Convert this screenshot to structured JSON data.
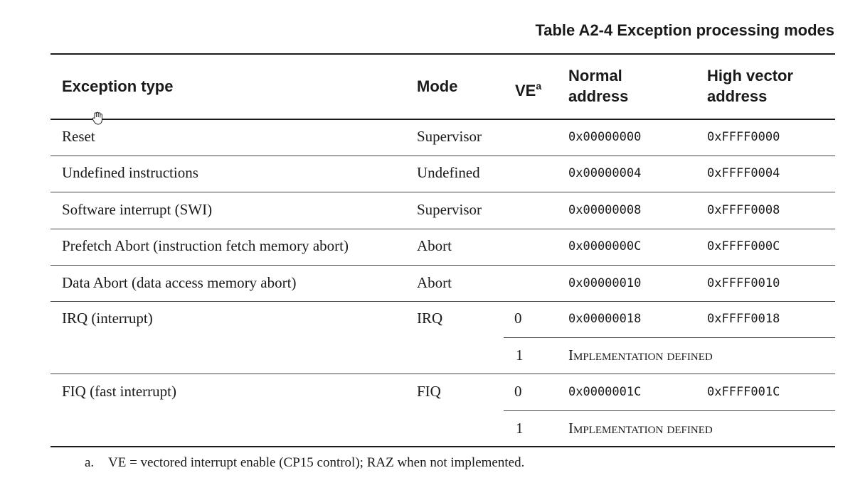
{
  "title": "Table A2-4 Exception processing modes",
  "headers": {
    "exception_type": "Exception type",
    "mode": "Mode",
    "ve": "VE",
    "ve_sup": "a",
    "normal_1": "Normal",
    "normal_2": "address",
    "high_1": "High vector",
    "high_2": "address"
  },
  "rows": [
    {
      "type": "Reset",
      "mode": "Supervisor",
      "ve": "",
      "normal": "0x00000000",
      "high": "0xFFFF0000"
    },
    {
      "type": "Undefined instructions",
      "mode": "Undefined",
      "ve": "",
      "normal": "0x00000004",
      "high": "0xFFFF0004"
    },
    {
      "type": "Software interrupt (SWI)",
      "mode": "Supervisor",
      "ve": "",
      "normal": "0x00000008",
      "high": "0xFFFF0008"
    },
    {
      "type": "Prefetch Abort (instruction fetch memory abort)",
      "mode": "Abort",
      "ve": "",
      "normal": "0x0000000C",
      "high": "0xFFFF000C"
    },
    {
      "type": "Data Abort (data access memory abort)",
      "mode": "Abort",
      "ve": "",
      "normal": "0x00000010",
      "high": "0xFFFF0010"
    },
    {
      "type": "IRQ (interrupt)",
      "mode": "IRQ",
      "ve": "0",
      "normal": "0x00000018",
      "high": "0xFFFF0018"
    },
    {
      "ve": "1",
      "impl": "Implementation defined"
    },
    {
      "type": "FIQ (fast interrupt)",
      "mode": "FIQ",
      "ve": "0",
      "normal": "0x0000001C",
      "high": "0xFFFF001C"
    },
    {
      "ve": "1",
      "impl": "Implementation defined"
    }
  ],
  "footnote": {
    "mark": "a.",
    "text": "VE = vectored interrupt enable (CP15 control); RAZ when not implemented."
  },
  "icons": {
    "cursor": "hand-pointer-icon"
  }
}
